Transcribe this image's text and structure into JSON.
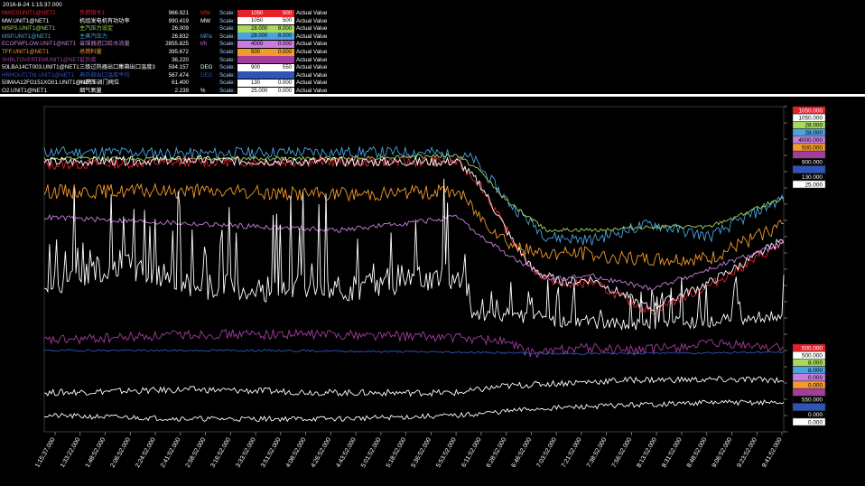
{
  "timestamp": "2016-8-24 1:15:37.000",
  "legend": {
    "scale_label": "Scale:",
    "actual_label": "Actual Value",
    "rows": [
      {
        "tag": "MWDSUNIT1@NET1",
        "desc": "负荷指令1",
        "value": "966.921",
        "unit": "MW",
        "max": "1050",
        "min": "500",
        "color": "#e8202a",
        "box": "#e8202a"
      },
      {
        "tag": "MW.UNIT1@NET1",
        "desc": "机组发电机有功功率",
        "value": "990.419",
        "unit": "MW",
        "max": "1050",
        "min": "500",
        "color": "#ffffff",
        "box": "#ffffff"
      },
      {
        "tag": "MSPS.UNIT1@NET1",
        "desc": "主汽压力设定",
        "value": "26.009",
        "unit": "",
        "max": "28.000",
        "min": "8.000",
        "color": "#a7d95a",
        "box": "#a7d95a"
      },
      {
        "tag": "MSP.UNIT1@NET1",
        "desc": "主蒸汽压力",
        "value": "26.832",
        "unit": "MPa",
        "max": "28.000",
        "min": "8.000",
        "color": "#4aa3df",
        "box": "#4aa3df"
      },
      {
        "tag": "ECOFWFLOW.UNIT1@NET1",
        "desc": "省煤器进口给水流量",
        "value": "2855.825",
        "unit": "t/h",
        "max": "4000",
        "min": "0.000",
        "color": "#c77ddd",
        "box": "#c77ddd"
      },
      {
        "tag": "TFF.UNIT1@NET1",
        "desc": "总燃料量",
        "value": "395.672",
        "unit": "",
        "max": "500",
        "min": "0.000",
        "color": "#f39a2b",
        "box": "#f39a2b"
      },
      {
        "tag": "SHBLTOVERTEMUNIT1@NET1",
        "desc": "过热度",
        "value": "36.220",
        "unit": "",
        "max": "",
        "min": "",
        "color": "#a23d9e",
        "box": "#a23d9e"
      },
      {
        "tag": "50LBA14CT003.UNIT1@NET1",
        "desc": "三级过热器出口集箱出口温度3",
        "value": "594.157",
        "unit": "DEG",
        "max": "900",
        "min": "550",
        "color": "#ffffff",
        "box": "#ffffff"
      },
      {
        "tag": "HRHOUTLTM.UNIT1@NET1",
        "desc": "再热器出口温度平均",
        "value": "567.474",
        "unit": "DEG",
        "max": "",
        "min": "",
        "color": "#2f54b8",
        "box": "#2f54b8"
      },
      {
        "tag": "50MAA12FG151XG01.UNIT1@NET1",
        "desc": "#1高压调门阀位",
        "value": "61.400",
        "unit": "",
        "max": "130",
        "min": "0.000",
        "color": "#ffffff",
        "box": "#ffffff"
      },
      {
        "tag": "O2.UNIT1@NET1",
        "desc": "烟气氧量",
        "value": "2.239",
        "unit": "%",
        "max": "25.000",
        "min": "0.000",
        "color": "#ffffff",
        "box": "#ffffff"
      }
    ]
  },
  "chart_data": {
    "type": "line",
    "background": "#000000",
    "x_axis_labels": [
      "1:15:37.000",
      "1:33:22.000",
      "1:48:52.000",
      "2:06:52.000",
      "2:24:52.000",
      "2:41:52.000",
      "2:58:52.000",
      "3:16:52.000",
      "3:33:52.000",
      "3:51:52.000",
      "4:08:52.000",
      "4:26:52.000",
      "4:43:52.000",
      "5:01:52.000",
      "5:18:52.000",
      "5:36:52.000",
      "5:53:52.000",
      "6:11:52.000",
      "6:28:52.000",
      "6:46:52.000",
      "7:03:52.000",
      "7:21:52.000",
      "7:38:52.000",
      "7:56:52.000",
      "8:13:52.000",
      "8:31:52.000",
      "8:48:52.000",
      "9:06:52.000",
      "9:23:52.000",
      "9:41:52.000"
    ],
    "right_scale_top": [
      {
        "value": "1050.000",
        "color": "#e8202a",
        "text": "#ffffff"
      },
      {
        "value": "1050.000",
        "color": "#ffffff",
        "text": "#000000"
      },
      {
        "value": "28.000",
        "color": "#a7d95a",
        "text": "#000000"
      },
      {
        "value": "28.000",
        "color": "#4aa3df",
        "text": "#000000"
      },
      {
        "value": "4000.000",
        "color": "#c77ddd",
        "text": "#000000"
      },
      {
        "value": "500.000",
        "color": "#f39a2b",
        "text": "#000000"
      },
      {
        "value": "",
        "color": "#a23d9e",
        "text": "#000000"
      },
      {
        "value": "900.000",
        "color": "#000000",
        "text": "#ffffff"
      },
      {
        "value": "",
        "color": "#2f54b8",
        "text": "#ffffff"
      },
      {
        "value": "130.000",
        "color": "#000000",
        "text": "#ffffff"
      },
      {
        "value": "25.000",
        "color": "#ffffff",
        "text": "#000000"
      }
    ],
    "right_scale_bottom": [
      {
        "value": "500.000",
        "color": "#e8202a",
        "text": "#ffffff"
      },
      {
        "value": "500.000",
        "color": "#ffffff",
        "text": "#000000"
      },
      {
        "value": "8.000",
        "color": "#a7d95a",
        "text": "#000000"
      },
      {
        "value": "8.000",
        "color": "#4aa3df",
        "text": "#000000"
      },
      {
        "value": "0.000",
        "color": "#c77ddd",
        "text": "#000000"
      },
      {
        "value": "0.000",
        "color": "#f39a2b",
        "text": "#000000"
      },
      {
        "value": "",
        "color": "#a23d9e",
        "text": "#000000"
      },
      {
        "value": "550.000",
        "color": "#000000",
        "text": "#ffffff"
      },
      {
        "value": "",
        "color": "#2f54b8",
        "text": "#ffffff"
      },
      {
        "value": "0.000",
        "color": "#000000",
        "text": "#ffffff"
      },
      {
        "value": "0.000",
        "color": "#ffffff",
        "text": "#000000"
      }
    ],
    "x_domain": [
      0,
      100
    ],
    "y_domain": [
      0,
      100
    ],
    "series": [
      {
        "color": "#4aa3df",
        "noise": 1.8,
        "seed": 11,
        "points": [
          [
            0,
            86
          ],
          [
            10,
            86
          ],
          [
            20,
            85.5
          ],
          [
            30,
            86
          ],
          [
            40,
            86
          ],
          [
            52,
            86
          ],
          [
            58,
            84
          ],
          [
            63,
            70
          ],
          [
            68,
            60
          ],
          [
            74,
            59
          ],
          [
            82,
            64
          ],
          [
            90,
            60
          ],
          [
            100,
            72
          ]
        ]
      },
      {
        "color": "#a7d95a",
        "noise": 0.6,
        "seed": 12,
        "points": [
          [
            0,
            84
          ],
          [
            20,
            84
          ],
          [
            40,
            84
          ],
          [
            56,
            85
          ],
          [
            59,
            80
          ],
          [
            63,
            70
          ],
          [
            68,
            62
          ],
          [
            74,
            62
          ],
          [
            82,
            63
          ],
          [
            90,
            63
          ],
          [
            100,
            72
          ]
        ]
      },
      {
        "color": "#e8202a",
        "noise": 1.5,
        "seed": 13,
        "points": [
          [
            0,
            82
          ],
          [
            20,
            83
          ],
          [
            40,
            83
          ],
          [
            56,
            83
          ],
          [
            59,
            76
          ],
          [
            63,
            60
          ],
          [
            66,
            50
          ],
          [
            70,
            45
          ],
          [
            74,
            46
          ],
          [
            82,
            37
          ],
          [
            90,
            45
          ],
          [
            100,
            58
          ]
        ]
      },
      {
        "color": "#ffffff",
        "noise": 1.4,
        "seed": 14,
        "points": [
          [
            0,
            83
          ],
          [
            20,
            83.5
          ],
          [
            40,
            83
          ],
          [
            56,
            83
          ],
          [
            59,
            76
          ],
          [
            63,
            60
          ],
          [
            66,
            50
          ],
          [
            70,
            46
          ],
          [
            74,
            47
          ],
          [
            82,
            38
          ],
          [
            90,
            46
          ],
          [
            100,
            59
          ]
        ]
      },
      {
        "color": "#f39a2b",
        "noise": 2.2,
        "seed": 15,
        "points": [
          [
            0,
            74
          ],
          [
            20,
            74
          ],
          [
            40,
            73
          ],
          [
            56,
            74
          ],
          [
            59,
            66
          ],
          [
            63,
            58
          ],
          [
            66,
            55
          ],
          [
            72,
            55
          ],
          [
            80,
            53
          ],
          [
            90,
            53
          ],
          [
            100,
            64
          ]
        ]
      },
      {
        "color": "#c77ddd",
        "noise": 0.8,
        "seed": 16,
        "points": [
          [
            0,
            66
          ],
          [
            20,
            64
          ],
          [
            40,
            62
          ],
          [
            56,
            66
          ],
          [
            59,
            60
          ],
          [
            63,
            54
          ],
          [
            68,
            47
          ],
          [
            74,
            48
          ],
          [
            82,
            44
          ],
          [
            90,
            50
          ],
          [
            100,
            58
          ]
        ]
      },
      {
        "color": "#ffffff",
        "noise": 14,
        "seed": 17,
        "points": [
          [
            0,
            45
          ],
          [
            10,
            52
          ],
          [
            20,
            45
          ],
          [
            30,
            44
          ],
          [
            40,
            44
          ],
          [
            56,
            48
          ],
          [
            58,
            36
          ],
          [
            63,
            35
          ],
          [
            70,
            34
          ],
          [
            80,
            33
          ],
          [
            90,
            34
          ],
          [
            100,
            36
          ]
        ]
      },
      {
        "color": "#a23d9e",
        "noise": 1.5,
        "seed": 18,
        "points": [
          [
            0,
            28
          ],
          [
            20,
            30
          ],
          [
            40,
            30
          ],
          [
            56,
            29
          ],
          [
            62,
            28
          ],
          [
            66,
            24
          ],
          [
            72,
            26
          ],
          [
            80,
            25
          ],
          [
            90,
            27
          ],
          [
            100,
            26
          ]
        ]
      },
      {
        "color": "#2f54b8",
        "noise": 0.3,
        "seed": 19,
        "points": [
          [
            0,
            25
          ],
          [
            30,
            25
          ],
          [
            56,
            24.5
          ],
          [
            70,
            24
          ],
          [
            100,
            24.5
          ]
        ]
      },
      {
        "color": "#ffffff",
        "noise": 1,
        "seed": 20,
        "points": [
          [
            0,
            12
          ],
          [
            20,
            13
          ],
          [
            40,
            12
          ],
          [
            56,
            12
          ],
          [
            62,
            14
          ],
          [
            70,
            15
          ],
          [
            80,
            16
          ],
          [
            100,
            16
          ]
        ]
      },
      {
        "color": "#ffffff",
        "noise": 0.8,
        "seed": 21,
        "points": [
          [
            0,
            5
          ],
          [
            20,
            4
          ],
          [
            40,
            4
          ],
          [
            56,
            5
          ],
          [
            66,
            7
          ],
          [
            76,
            8
          ],
          [
            90,
            9
          ],
          [
            100,
            9
          ]
        ]
      }
    ]
  }
}
